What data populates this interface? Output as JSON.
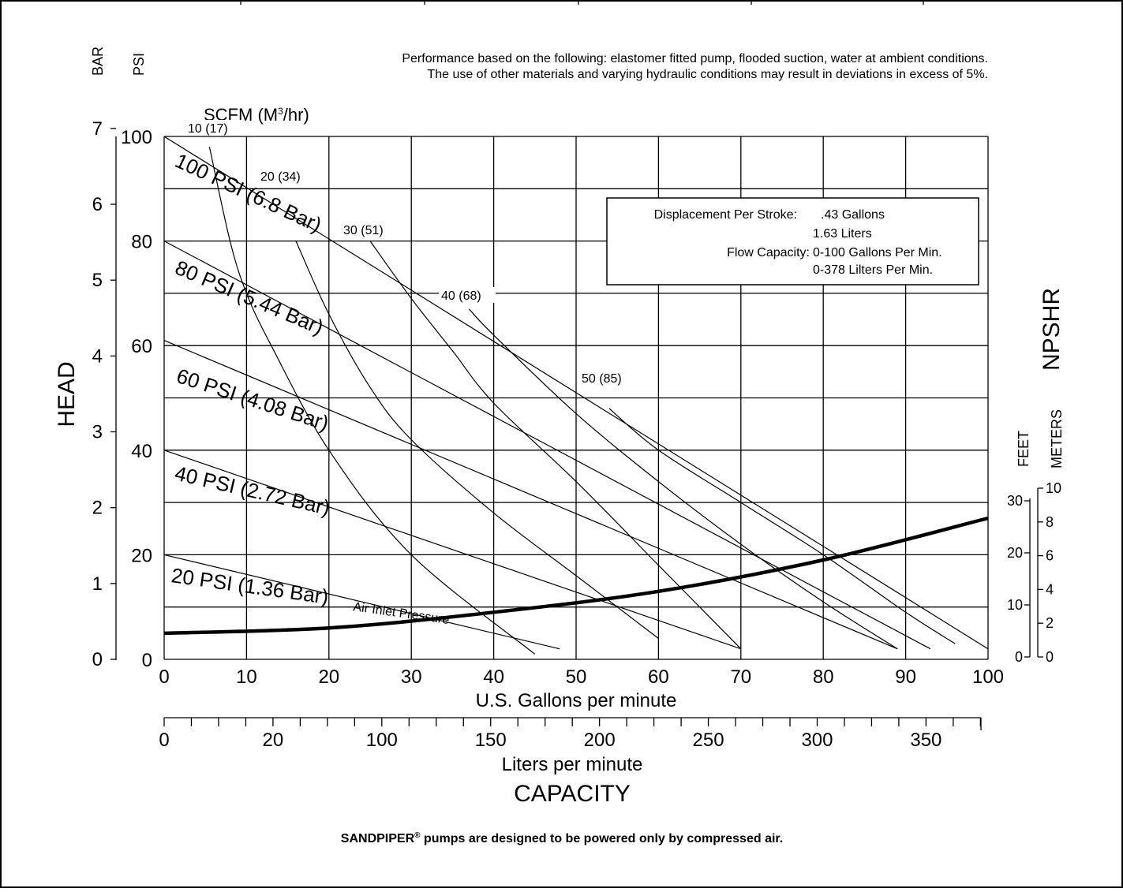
{
  "note_line1": "Performance based on the following: elastomer fitted pump, flooded suction, water at ambient conditions.",
  "note_line2": "The use of other materials and varying hydraulic conditions may result in deviations in excess of 5%.",
  "footer_brand": "SANDPIPER",
  "footer_reg": "®",
  "footer_rest": " pumps are designed to be powered only by compressed air.",
  "info_box": {
    "disp_label": "Displacement Per Stroke:",
    "disp_val1": ".43 Gallons",
    "disp_val2": "1.63 Liters",
    "flow_label": "Flow Capacity:",
    "flow_val1": "0-100 Gallons Per Min.",
    "flow_val2": "0-378 Lilters Per Min."
  },
  "labels": {
    "bar": "BAR",
    "psi": "PSI",
    "head": "HEAD",
    "scfm": "SCFM (M",
    "scfm_sup": "3",
    "scfm_end": "/hr)",
    "gpm": "U.S. Gallons per minute",
    "lpm": "Liters per minute",
    "capacity": "CAPACITY",
    "npshr": "NPSHR",
    "feet": "FEET",
    "meters": "METERS",
    "air_inlet": "Air Inlet Pressure"
  },
  "chart_data": {
    "type": "line",
    "xlabel": "U.S. Gallons per minute",
    "xlim": [
      0,
      100
    ],
    "x_ticks": [
      "0",
      "10",
      "20",
      "30",
      "40",
      "50",
      "60",
      "70",
      "80",
      "90",
      "100"
    ],
    "ylim": [
      0,
      100
    ],
    "y_ticks_psi": [
      "0",
      "20",
      "40",
      "60",
      "80",
      "100"
    ],
    "y_ticks_bar": [
      "0",
      "1",
      "2",
      "3",
      "4",
      "5",
      "6",
      "7"
    ],
    "lpm_ticks": [
      "0",
      "20",
      "100",
      "150",
      "200",
      "250",
      "300",
      "350"
    ],
    "npshr_feet_ticks": [
      "0",
      "10",
      "20",
      "30"
    ],
    "npshr_meter_ticks": [
      "0",
      "2",
      "4",
      "6",
      "8",
      "10"
    ],
    "air_pressure_lines": [
      {
        "name": "100 PSI (6.8 Bar)",
        "x": [
          0,
          100
        ],
        "y": [
          100,
          2
        ]
      },
      {
        "name": "80 PSI (5.44 Bar)",
        "x": [
          0,
          93
        ],
        "y": [
          80,
          2
        ]
      },
      {
        "name": "60 PSI (4.08 Bar)",
        "x": [
          0,
          89
        ],
        "y": [
          61,
          2
        ]
      },
      {
        "name": "40 PSI (2.72 Bar)",
        "x": [
          0,
          70
        ],
        "y": [
          40,
          2
        ]
      },
      {
        "name": "20 PSI (1.36 Bar)",
        "x": [
          0,
          48
        ],
        "y": [
          20,
          2
        ]
      }
    ],
    "air_consumption_curves": [
      {
        "name": "10 (17)",
        "x": [
          5.5,
          8,
          10,
          13,
          20,
          30,
          45
        ],
        "y": [
          98,
          80,
          70,
          60,
          40,
          20,
          1
        ]
      },
      {
        "name": "20 (34)",
        "x": [
          16,
          20,
          25,
          30,
          40,
          50,
          60
        ],
        "y": [
          80,
          66,
          52,
          42,
          28,
          16,
          4
        ]
      },
      {
        "name": "30 (51)",
        "x": [
          25,
          30,
          35,
          40,
          50,
          60,
          70
        ],
        "y": [
          80,
          69,
          59,
          49,
          34,
          18,
          2
        ]
      },
      {
        "name": "40 (68)",
        "x": [
          37,
          40,
          50,
          60,
          70,
          80,
          89
        ],
        "y": [
          67,
          62,
          47,
          34,
          22,
          11,
          2
        ]
      },
      {
        "name": "50 (85)",
        "x": [
          54,
          60,
          70,
          80,
          90,
          96
        ],
        "y": [
          48,
          40,
          30,
          20,
          9,
          3
        ]
      }
    ],
    "npshr_curve": {
      "name": "NPSHR",
      "x": [
        0,
        20,
        40,
        60,
        80,
        100
      ],
      "y": [
        5,
        6,
        9,
        13,
        19,
        27
      ]
    }
  }
}
